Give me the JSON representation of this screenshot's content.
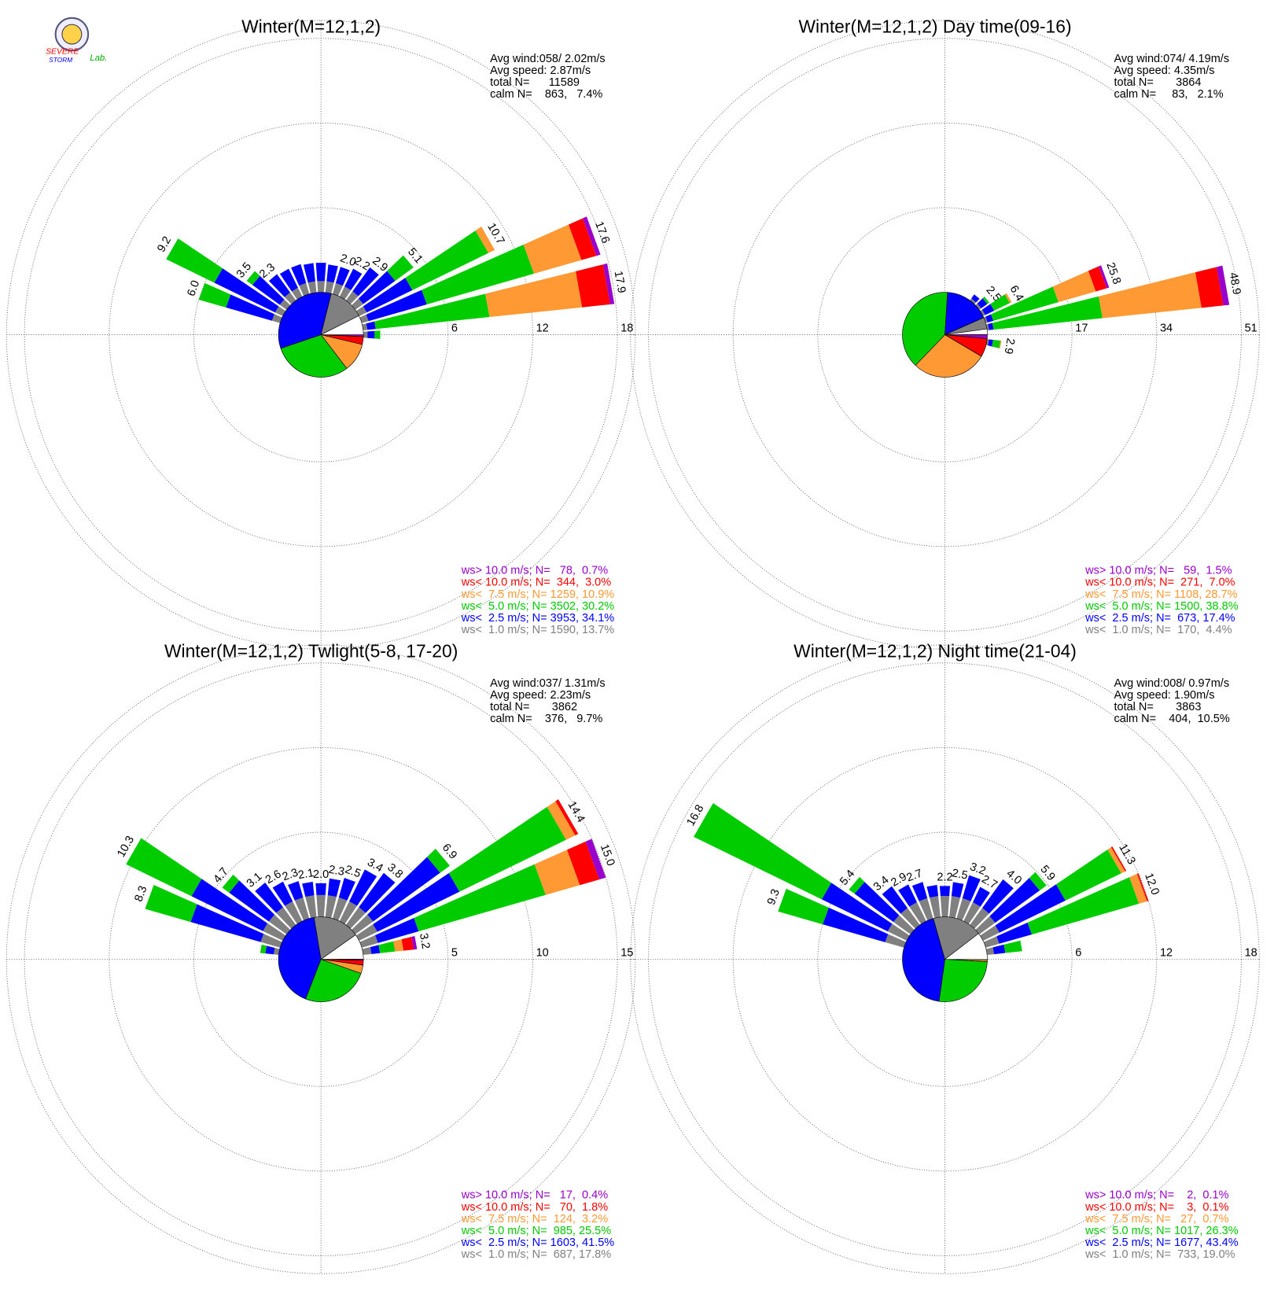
{
  "logo": {
    "lines": [
      "SEVERE",
      "STORM",
      "Lab."
    ]
  },
  "chart_data": [
    {
      "type": "windrose",
      "title": "Winter(M=12,1,2)",
      "stats": [
        "Avg wind:058/ 2.02m/s",
        "Avg speed: 2.87m/s",
        "total N=      11589",
        "calm N=    863,   7.4%"
      ],
      "rticks": [
        6,
        12,
        18
      ],
      "legend": {
        "labels": [
          "ws> 10.0 m/s; N=   78,  0.7%",
          "ws< 10.0 m/s; N=  344,  3.0%",
          "ws<  7.5 m/s; N= 1259, 10.9%",
          "ws<  5.0 m/s; N= 3502, 30.2%",
          "ws<  2.5 m/s; N= 3953, 34.1%",
          "ws<  1.0 m/s; N= 1590, 13.7%"
        ],
        "colors": [
          "#9900cc",
          "#ff0000",
          "#ff9933",
          "#00cc00",
          "#0000ff",
          "#808080"
        ]
      },
      "pie": {
        "values": [
          0.7,
          3.0,
          10.9,
          30.2,
          34.1,
          13.7
        ],
        "calm": 7.4,
        "calm_color": "#ffffff"
      },
      "petals": [
        {
          "direction": 290,
          "label": "6.0",
          "segments": [
            0,
            0,
            0,
            2.0,
            3.4,
            0.6
          ]
        },
        {
          "direction": 300,
          "label": "9.2",
          "segments": [
            0,
            0,
            0,
            3.8,
            4.8,
            0.6
          ]
        },
        {
          "direction": 310,
          "label": "3.5",
          "segments": [
            0,
            0,
            0,
            0.5,
            2.4,
            0.6
          ]
        },
        {
          "direction": 320,
          "label": "2.3",
          "segments": [
            0,
            0,
            0,
            0,
            1.6,
            0.7
          ]
        },
        {
          "direction": 330,
          "label": null,
          "segments": [
            0,
            0,
            0,
            0,
            1.5,
            0.7
          ]
        },
        {
          "direction": 340,
          "label": null,
          "segments": [
            0,
            0,
            0,
            0,
            1.4,
            0.8
          ]
        },
        {
          "direction": 350,
          "label": null,
          "segments": [
            0,
            0,
            0,
            0,
            1.3,
            0.8
          ]
        },
        {
          "direction": 0,
          "label": null,
          "segments": [
            0,
            0,
            0,
            0,
            1.3,
            0.8
          ]
        },
        {
          "direction": 10,
          "label": null,
          "segments": [
            0,
            0,
            0,
            0,
            1.2,
            0.8
          ]
        },
        {
          "direction": 20,
          "label": "2.0",
          "segments": [
            0,
            0,
            0,
            0,
            1.2,
            0.8
          ]
        },
        {
          "direction": 30,
          "label": "2.2",
          "segments": [
            0,
            0,
            0,
            0,
            1.4,
            0.8
          ]
        },
        {
          "direction": 40,
          "label": "2.9",
          "segments": [
            0,
            0,
            0,
            0,
            2.1,
            0.8
          ]
        },
        {
          "direction": 50,
          "label": "5.1",
          "segments": [
            0,
            0,
            0,
            1.6,
            2.8,
            0.7
          ]
        },
        {
          "direction": 60,
          "label": "10.7",
          "segments": [
            0,
            0,
            0.5,
            6.0,
            3.6,
            0.6
          ]
        },
        {
          "direction": 70,
          "label": "17.6",
          "segments": [
            0.3,
            1.1,
            3.5,
            7.9,
            4.3,
            0.5
          ]
        },
        {
          "direction": 80,
          "label": "17.9",
          "segments": [
            0.3,
            2.0,
            6.6,
            8.1,
            0.6,
            0.3
          ]
        },
        {
          "direction": 90,
          "label": null,
          "segments": [
            0,
            0,
            0,
            0.4,
            0.5,
            0.3
          ]
        }
      ]
    },
    {
      "type": "windrose",
      "title": "Winter(M=12,1,2) Day time(09-16)",
      "stats": [
        "Avg wind:074/ 4.19m/s",
        "Avg speed: 4.35m/s",
        "total N=       3864",
        "calm N=     83,   2.1%"
      ],
      "rticks": [
        17,
        34,
        51
      ],
      "legend": {
        "labels": [
          "ws> 10.0 m/s; N=   59,  1.5%",
          "ws< 10.0 m/s; N=  271,  7.0%",
          "ws<  7.5 m/s; N= 1108, 28.7%",
          "ws<  5.0 m/s; N= 1500, 38.8%",
          "ws<  2.5 m/s; N=  673, 17.4%",
          "ws<  1.0 m/s; N=  170,  4.4%"
        ],
        "colors": [
          "#9900cc",
          "#ff0000",
          "#ff9933",
          "#00cc00",
          "#0000ff",
          "#808080"
        ]
      },
      "pie": {
        "values": [
          1.5,
          7.0,
          28.7,
          38.8,
          17.4,
          4.4
        ],
        "calm": 2.1,
        "calm_color": "#ffffff"
      },
      "petals": [
        {
          "direction": 40,
          "label": null,
          "segments": [
            0,
            0,
            0,
            0,
            1.0,
            0.5
          ]
        },
        {
          "direction": 50,
          "label": "2.5",
          "segments": [
            0,
            0,
            0,
            0.5,
            1.5,
            0.5
          ]
        },
        {
          "direction": 60,
          "label": "6.4",
          "segments": [
            0,
            0,
            0.4,
            3.5,
            2.0,
            0.5
          ]
        },
        {
          "direction": 70,
          "label": "25.8",
          "segments": [
            0.5,
            2.3,
            7.8,
            13.6,
            1.2,
            0.4
          ]
        },
        {
          "direction": 80,
          "label": "48.9",
          "segments": [
            1.2,
            4.4,
            20.0,
            22.0,
            0.9,
            0.4
          ]
        },
        {
          "direction": 100,
          "label": "2.9",
          "segments": [
            0,
            0,
            0.2,
            1.5,
            0.8,
            0.4
          ]
        }
      ]
    },
    {
      "type": "windrose",
      "title": "Winter(M=12,1,2) Twlight(5-8, 17-20)",
      "stats": [
        "Avg wind:037/ 1.31m/s",
        "Avg speed: 2.23m/s",
        "total N=       3862",
        "calm N=    376,   9.7%"
      ],
      "rticks": [
        5,
        10,
        15
      ],
      "legend": {
        "labels": [
          "ws> 10.0 m/s; N=   17,  0.4%",
          "ws< 10.0 m/s; N=   70,  1.8%",
          "ws<  7.5 m/s; N=  124,  3.2%",
          "ws<  5.0 m/s; N=  985, 25.5%",
          "ws<  2.5 m/s; N= 1603, 41.5%",
          "ws<  1.0 m/s; N=  687, 17.8%"
        ],
        "colors": [
          "#9900cc",
          "#ff0000",
          "#ff9933",
          "#00cc00",
          "#0000ff",
          "#808080"
        ]
      },
      "pie": {
        "values": [
          0.4,
          1.8,
          3.2,
          25.5,
          41.5,
          17.8
        ],
        "calm": 9.7,
        "calm_color": "#ffffff"
      },
      "petals": [
        {
          "direction": 280,
          "label": null,
          "segments": [
            0,
            0,
            0,
            0.3,
            0.5,
            0.3
          ]
        },
        {
          "direction": 290,
          "label": "8.3",
          "segments": [
            0,
            0,
            0,
            2.8,
            4.3,
            1.2
          ]
        },
        {
          "direction": 300,
          "label": "10.3",
          "segments": [
            0,
            0,
            0,
            4.3,
            4.7,
            1.3
          ]
        },
        {
          "direction": 310,
          "label": "4.7",
          "segments": [
            0,
            0,
            0,
            0.5,
            2.9,
            1.3
          ]
        },
        {
          "direction": 320,
          "label": "3.1",
          "segments": [
            0,
            0,
            0,
            0,
            1.8,
            1.3
          ]
        },
        {
          "direction": 330,
          "label": "2.6",
          "segments": [
            0,
            0,
            0,
            0,
            1.3,
            1.3
          ]
        },
        {
          "direction": 340,
          "label": "2.3",
          "segments": [
            0,
            0,
            0,
            0,
            1.0,
            1.3
          ]
        },
        {
          "direction": 350,
          "label": "2.1",
          "segments": [
            0,
            0,
            0,
            0,
            0.8,
            1.3
          ]
        },
        {
          "direction": 0,
          "label": "2.0",
          "segments": [
            0,
            0,
            0,
            0,
            0.7,
            1.3
          ]
        },
        {
          "direction": 10,
          "label": "2.3",
          "segments": [
            0,
            0,
            0,
            0,
            1.0,
            1.3
          ]
        },
        {
          "direction": 20,
          "label": "2.5",
          "segments": [
            0,
            0,
            0,
            0,
            1.2,
            1.3
          ]
        },
        {
          "direction": 30,
          "label": "3.4",
          "segments": [
            0,
            0,
            0,
            0,
            2.1,
            1.3
          ]
        },
        {
          "direction": 40,
          "label": "3.8",
          "segments": [
            0,
            0,
            0,
            0,
            2.5,
            1.3
          ]
        },
        {
          "direction": 50,
          "label": "6.9",
          "segments": [
            0,
            0,
            0,
            0.7,
            4.9,
            1.3
          ]
        },
        {
          "direction": 60,
          "label": "14.4",
          "segments": [
            0,
            0.2,
            0.6,
            7.0,
            5.4,
            1.2
          ]
        },
        {
          "direction": 70,
          "label": "15.0",
          "segments": [
            0.4,
            1.2,
            2.1,
            7.8,
            2.5,
            1.0
          ]
        },
        {
          "direction": 80,
          "label": "3.2",
          "segments": [
            0.2,
            0.6,
            0.5,
            0.9,
            0.5,
            0.5
          ]
        }
      ]
    },
    {
      "type": "windrose",
      "title": "Winter(M=12,1,2) Night time(21-04)",
      "stats": [
        "Avg wind:008/ 0.97m/s",
        "Avg speed: 1.90m/s",
        "total N=       3863",
        "calm N=    404,  10.5%"
      ],
      "rticks": [
        6,
        12,
        18
      ],
      "legend": {
        "labels": [
          "ws> 10.0 m/s; N=    2,  0.1%",
          "ws< 10.0 m/s; N=    3,  0.1%",
          "ws<  7.5 m/s; N=   27,  0.7%",
          "ws<  5.0 m/s; N= 1017, 26.3%",
          "ws<  2.5 m/s; N= 1677, 43.4%",
          "ws<  1.0 m/s; N=  733, 19.0%"
        ],
        "colors": [
          "#9900cc",
          "#ff0000",
          "#ff9933",
          "#00cc00",
          "#0000ff",
          "#808080"
        ]
      },
      "pie": {
        "values": [
          0.1,
          0.1,
          0.7,
          26.3,
          43.4,
          19.0
        ],
        "calm": 10.5,
        "calm_color": "#ffffff"
      },
      "petals": [
        {
          "direction": 290,
          "label": "9.3",
          "segments": [
            0,
            0,
            0,
            3.3,
            4.6,
            1.4
          ]
        },
        {
          "direction": 300,
          "label": "16.8",
          "segments": [
            0,
            0,
            0,
            10.1,
            5.2,
            1.5
          ]
        },
        {
          "direction": 310,
          "label": "5.4",
          "segments": [
            0,
            0,
            0,
            0.5,
            3.4,
            1.5
          ]
        },
        {
          "direction": 320,
          "label": "3.4",
          "segments": [
            0,
            0,
            0,
            0,
            1.9,
            1.5
          ]
        },
        {
          "direction": 330,
          "label": "2.9",
          "segments": [
            0,
            0,
            0,
            0,
            1.4,
            1.5
          ]
        },
        {
          "direction": 340,
          "label": "2.7",
          "segments": [
            0,
            0,
            0,
            0,
            1.2,
            1.5
          ]
        },
        {
          "direction": 350,
          "label": null,
          "segments": [
            0,
            0,
            0,
            0,
            0.8,
            1.5
          ]
        },
        {
          "direction": 0,
          "label": "2.2",
          "segments": [
            0,
            0,
            0,
            0,
            0.7,
            1.5
          ]
        },
        {
          "direction": 10,
          "label": "2.5",
          "segments": [
            0,
            0,
            0,
            0,
            1.0,
            1.5
          ]
        },
        {
          "direction": 20,
          "label": "3.2",
          "segments": [
            0,
            0,
            0,
            0,
            1.7,
            1.5
          ]
        },
        {
          "direction": 30,
          "label": "2.7",
          "segments": [
            0,
            0,
            0,
            0,
            1.2,
            1.5
          ]
        },
        {
          "direction": 40,
          "label": "4.0",
          "segments": [
            0,
            0,
            0,
            0,
            2.5,
            1.5
          ]
        },
        {
          "direction": 50,
          "label": "5.9",
          "segments": [
            0,
            0,
            0,
            0.6,
            3.9,
            1.4
          ]
        },
        {
          "direction": 60,
          "label": "11.3",
          "segments": [
            0,
            0.1,
            0.3,
            4.4,
            5.2,
            1.3
          ]
        },
        {
          "direction": 70,
          "label": "12.0",
          "segments": [
            0,
            0.1,
            0.6,
            7.9,
            2.4,
            1.0
          ]
        },
        {
          "direction": 80,
          "label": null,
          "segments": [
            0,
            0,
            0,
            1.2,
            0.8,
            0.5
          ]
        }
      ]
    }
  ]
}
